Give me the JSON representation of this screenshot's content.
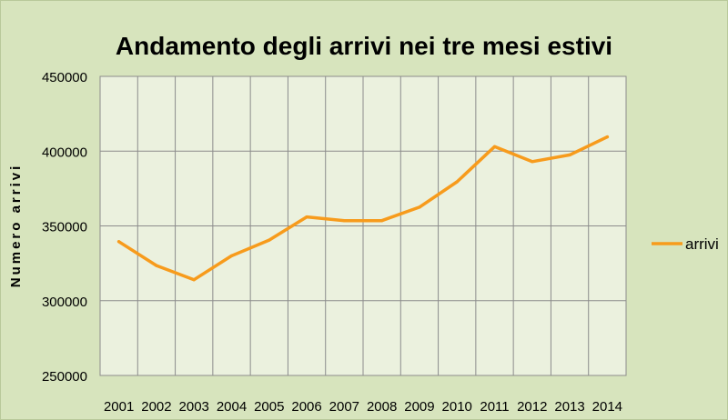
{
  "chart_data": {
    "type": "line",
    "title": "Andamento degli arrivi nei tre mesi estivi",
    "xlabel": "",
    "ylabel": "Numero  arrivi",
    "categories": [
      "2001",
      "2002",
      "2003",
      "2004",
      "2005",
      "2006",
      "2007",
      "2008",
      "2009",
      "2010",
      "2011",
      "2012",
      "2013",
      "2014"
    ],
    "series": [
      {
        "name": "arrivi",
        "color": "#f79b1c",
        "values": [
          339500,
          323500,
          314000,
          330000,
          340500,
          356000,
          353500,
          353500,
          362500,
          379500,
          403000,
          393000,
          397500,
          409500
        ]
      }
    ],
    "ylim": [
      250000,
      450000
    ],
    "yticks": [
      250000,
      300000,
      350000,
      400000,
      450000
    ],
    "grid": true,
    "legend_position": "right",
    "plot_background": "#ebf1de",
    "page_background": "#d7e4bd",
    "grid_color": "#8c8c8c"
  }
}
